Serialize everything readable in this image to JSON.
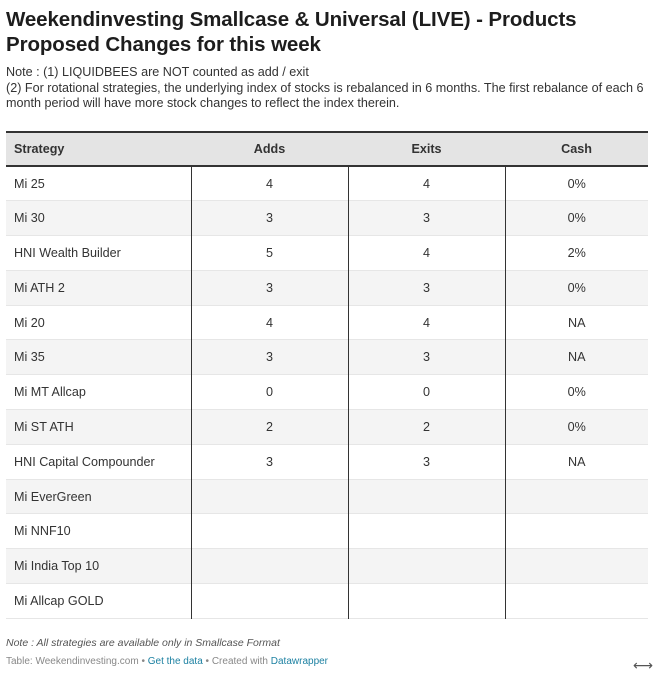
{
  "title": "Weekendinvesting Smallcase & Universal (LIVE) - Products Proposed Changes for this week",
  "notes": [
    "Note : (1) LIQUIDBEES are NOT counted as add / exit",
    "(2) For rotational strategies, the underlying index of stocks is rebalanced in 6 months. The first rebalance of each 6 month period will have more stock changes to reflect the index therein."
  ],
  "chart_data": {
    "type": "table",
    "columns": [
      "Strategy",
      "Adds",
      "Exits",
      "Cash"
    ],
    "rows": [
      [
        "Mi 25",
        "4",
        "4",
        "0%"
      ],
      [
        "Mi 30",
        "3",
        "3",
        "0%"
      ],
      [
        "HNI Wealth Builder",
        "5",
        "4",
        "2%"
      ],
      [
        "Mi ATH 2",
        "3",
        "3",
        "0%"
      ],
      [
        "Mi 20",
        "4",
        "4",
        "NA"
      ],
      [
        "Mi 35",
        "3",
        "3",
        "NA"
      ],
      [
        "Mi MT Allcap",
        "0",
        "0",
        "0%"
      ],
      [
        "Mi ST ATH",
        "2",
        "2",
        "0%"
      ],
      [
        "HNI Capital Compounder",
        "3",
        "3",
        "NA"
      ],
      [
        "Mi EverGreen",
        "",
        "",
        ""
      ],
      [
        "Mi NNF10",
        "",
        "",
        ""
      ],
      [
        "Mi India Top 10",
        "",
        "",
        ""
      ],
      [
        "Mi Allcap GOLD",
        "",
        "",
        ""
      ]
    ]
  },
  "footer": {
    "note": "Note : All strategies are available only in Smallcase Format",
    "source_prefix": "Table: Weekendinvesting.com • ",
    "get_data": "Get the data",
    "created_with": " • Created with ",
    "datawrapper": "Datawrapper"
  },
  "expand_glyph": "⟷"
}
